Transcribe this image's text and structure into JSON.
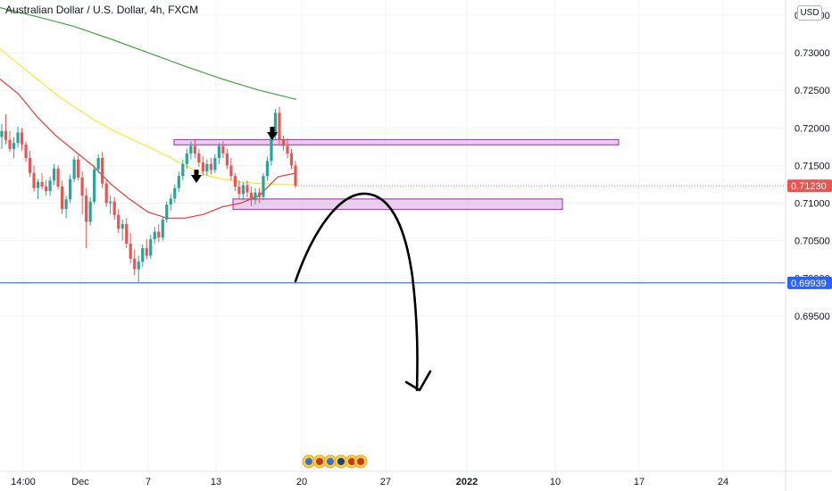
{
  "header": {
    "title": "Australian Dollar / U.S. Dollar, 4h, FXCM",
    "currency": "USD"
  },
  "colors": {
    "up": "#26a69a",
    "down": "#ef5350",
    "ma_fast": "#f5ea3b",
    "ma_mid": "#e53935",
    "ma_slow": "#43a047",
    "zone_fill": "#e1bee7",
    "zone_stroke": "#9c27b0",
    "support_line": "#2962ff",
    "price_tag": "#ef5350",
    "support_tag": "#2962ff"
  },
  "chart_data": {
    "type": "candlestick",
    "title": "Australian Dollar / U.S. Dollar, 4h, FXCM",
    "x_ticks": [
      "14:00",
      "Dec",
      "7",
      "13",
      "20",
      "27",
      "2022",
      "10",
      "17",
      "24"
    ],
    "y_ticks": [
      "0.73500",
      "0.73000",
      "0.72500",
      "0.72000",
      "0.71500",
      "0.71000",
      "0.70500",
      "0.70000",
      "0.69500"
    ],
    "ylim": [
      0.6915,
      0.7365
    ],
    "last_price": "0.71230",
    "support_level": "0.69939",
    "candles": [
      [
        0.7188,
        0.7205,
        0.7172,
        0.7196
      ],
      [
        0.7196,
        0.7218,
        0.7178,
        0.7184
      ],
      [
        0.7184,
        0.7196,
        0.7168,
        0.7172
      ],
      [
        0.7172,
        0.7188,
        0.716,
        0.718
      ],
      [
        0.718,
        0.7202,
        0.7174,
        0.7194
      ],
      [
        0.7194,
        0.72,
        0.717,
        0.7178
      ],
      [
        0.7178,
        0.7182,
        0.7155,
        0.716
      ],
      [
        0.716,
        0.717,
        0.7135,
        0.714
      ],
      [
        0.714,
        0.715,
        0.7115,
        0.712
      ],
      [
        0.712,
        0.7132,
        0.7105,
        0.7128
      ],
      [
        0.7128,
        0.714,
        0.7118,
        0.7122
      ],
      [
        0.7122,
        0.713,
        0.711,
        0.7116
      ],
      [
        0.7116,
        0.7135,
        0.711,
        0.713
      ],
      [
        0.713,
        0.7152,
        0.7124,
        0.7146
      ],
      [
        0.7146,
        0.715,
        0.7118,
        0.7122
      ],
      [
        0.7122,
        0.713,
        0.7085,
        0.7092
      ],
      [
        0.7092,
        0.711,
        0.708,
        0.7105
      ],
      [
        0.7105,
        0.7138,
        0.71,
        0.7132
      ],
      [
        0.7132,
        0.7162,
        0.7128,
        0.7158
      ],
      [
        0.7158,
        0.7164,
        0.713,
        0.7134
      ],
      [
        0.7134,
        0.7142,
        0.7085,
        0.711
      ],
      [
        0.711,
        0.712,
        0.704,
        0.7075
      ],
      [
        0.7075,
        0.7108,
        0.707,
        0.7102
      ],
      [
        0.7102,
        0.715,
        0.7098,
        0.7145
      ],
      [
        0.7145,
        0.7165,
        0.714,
        0.716
      ],
      [
        0.716,
        0.7168,
        0.712,
        0.7126
      ],
      [
        0.7126,
        0.7132,
        0.7095,
        0.71
      ],
      [
        0.71,
        0.711,
        0.7085,
        0.7102
      ],
      [
        0.7102,
        0.7108,
        0.7078,
        0.7084
      ],
      [
        0.7084,
        0.7092,
        0.706,
        0.7066
      ],
      [
        0.7066,
        0.7078,
        0.705,
        0.7072
      ],
      [
        0.7072,
        0.708,
        0.704,
        0.7046
      ],
      [
        0.7046,
        0.706,
        0.702,
        0.7026
      ],
      [
        0.7026,
        0.7038,
        0.7004,
        0.7012
      ],
      [
        0.7012,
        0.703,
        0.6995,
        0.7022
      ],
      [
        0.7022,
        0.7045,
        0.7015,
        0.704
      ],
      [
        0.704,
        0.7052,
        0.7025,
        0.703
      ],
      [
        0.703,
        0.7058,
        0.7026,
        0.7052
      ],
      [
        0.7052,
        0.7068,
        0.7046,
        0.7062
      ],
      [
        0.7062,
        0.7072,
        0.7048,
        0.7054
      ],
      [
        0.7054,
        0.7082,
        0.705,
        0.7078
      ],
      [
        0.7078,
        0.7102,
        0.7074,
        0.7098
      ],
      [
        0.7098,
        0.7112,
        0.709,
        0.7106
      ],
      [
        0.7106,
        0.7125,
        0.71,
        0.712
      ],
      [
        0.712,
        0.7142,
        0.7115,
        0.7136
      ],
      [
        0.7136,
        0.7158,
        0.713,
        0.7152
      ],
      [
        0.7152,
        0.7172,
        0.7146,
        0.7166
      ],
      [
        0.7166,
        0.7182,
        0.7158,
        0.7176
      ],
      [
        0.7176,
        0.7184,
        0.716,
        0.7166
      ],
      [
        0.7166,
        0.7172,
        0.7148,
        0.7154
      ],
      [
        0.7154,
        0.7162,
        0.7136,
        0.7142
      ],
      [
        0.7142,
        0.7158,
        0.7136,
        0.7152
      ],
      [
        0.7152,
        0.716,
        0.7138,
        0.7144
      ],
      [
        0.7144,
        0.7165,
        0.714,
        0.716
      ],
      [
        0.716,
        0.718,
        0.7152,
        0.7176
      ],
      [
        0.7176,
        0.7182,
        0.716,
        0.7166
      ],
      [
        0.7166,
        0.7172,
        0.7145,
        0.715
      ],
      [
        0.715,
        0.716,
        0.713,
        0.7136
      ],
      [
        0.7136,
        0.714,
        0.7116,
        0.7122
      ],
      [
        0.7122,
        0.713,
        0.7106,
        0.7112
      ],
      [
        0.7112,
        0.7128,
        0.7104,
        0.7124
      ],
      [
        0.7124,
        0.713,
        0.7108,
        0.7114
      ],
      [
        0.7114,
        0.7122,
        0.7096,
        0.7104
      ],
      [
        0.7104,
        0.712,
        0.7098,
        0.7114
      ],
      [
        0.7114,
        0.712,
        0.71,
        0.7108
      ],
      [
        0.7108,
        0.714,
        0.7104,
        0.7136
      ],
      [
        0.7136,
        0.7162,
        0.713,
        0.7156
      ],
      [
        0.7156,
        0.7195,
        0.715,
        0.719
      ],
      [
        0.719,
        0.7225,
        0.7185,
        0.722
      ],
      [
        0.722,
        0.7228,
        0.7178,
        0.7184
      ],
      [
        0.7184,
        0.719,
        0.717,
        0.7176
      ],
      [
        0.7176,
        0.7186,
        0.716,
        0.7166
      ],
      [
        0.7166,
        0.7172,
        0.7145,
        0.715
      ],
      [
        0.715,
        0.7156,
        0.712,
        0.7123
      ]
    ],
    "moving_averages": [
      {
        "color": "yellow",
        "values": [
          0.7305,
          0.7285,
          0.7265,
          0.7245,
          0.7228,
          0.7212,
          0.7198,
          0.7186,
          0.7175,
          0.7163,
          0.715,
          0.7138,
          0.7132,
          0.7128,
          0.7126,
          0.7125,
          0.7124
        ]
      },
      {
        "color": "red",
        "values": [
          0.7265,
          0.7245,
          0.7215,
          0.719,
          0.717,
          0.715,
          0.7125,
          0.7105,
          0.7088,
          0.708,
          0.708,
          0.7085,
          0.7095,
          0.71,
          0.711,
          0.7135,
          0.714
        ]
      },
      {
        "color": "green",
        "values": [
          0.736,
          0.7348,
          0.7335,
          0.7318,
          0.73,
          0.7282,
          0.7265,
          0.725,
          0.7238
        ]
      }
    ],
    "zones": [
      {
        "top": 0.71845,
        "bottom": 0.71775
      },
      {
        "top": 0.71055,
        "bottom": 0.70915
      }
    ]
  }
}
